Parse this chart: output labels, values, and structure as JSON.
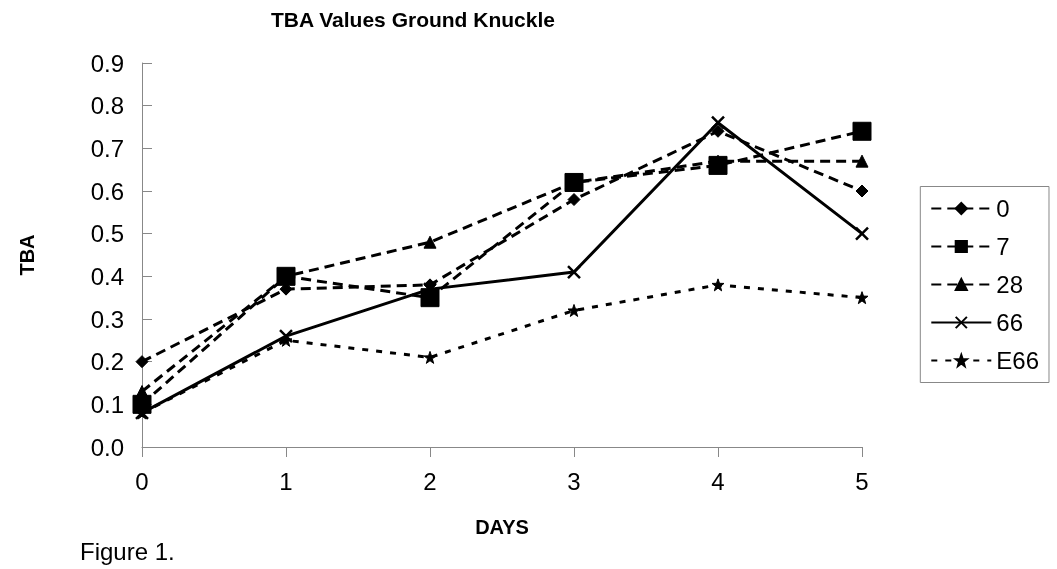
{
  "chart_data": {
    "type": "line",
    "title": "TBA Values Ground Knuckle",
    "xlabel": "DAYS",
    "ylabel": "TBA",
    "categories": [
      "0",
      "1",
      "2",
      "3",
      "4",
      "5"
    ],
    "series": [
      {
        "name": "0",
        "color": "#000000",
        "marker": "diamond",
        "line_style": "dashed",
        "values": [
          0.2,
          0.37,
          0.38,
          0.58,
          0.74,
          0.6
        ]
      },
      {
        "name": "7",
        "color": "#000000",
        "marker": "square",
        "line_style": "dashed",
        "values": [
          0.1,
          0.4,
          0.35,
          0.62,
          0.66,
          0.74
        ]
      },
      {
        "name": "28",
        "color": "#000000",
        "marker": "triangle",
        "line_style": "dashed",
        "values": [
          0.13,
          0.4,
          0.48,
          0.62,
          0.67,
          0.67
        ]
      },
      {
        "name": "66",
        "color": "#000000",
        "marker": "cross",
        "line_style": "solid",
        "values": [
          0.08,
          0.26,
          0.37,
          0.41,
          0.76,
          0.5
        ]
      },
      {
        "name": "E66",
        "color": "#000000",
        "marker": "star",
        "line_style": "dotted",
        "values": [
          0.08,
          0.25,
          0.21,
          0.32,
          0.38,
          0.35
        ]
      }
    ],
    "ylim": [
      0,
      0.9
    ],
    "yticks": [
      {
        "value": 0,
        "label": "0.0"
      },
      0.1,
      0.2,
      0.3,
      0.4,
      0.5,
      0.6,
      0.7,
      0.8,
      0.9
    ],
    "grid": false,
    "legend": "right",
    "annotations": [
      "Figure 1."
    ]
  }
}
